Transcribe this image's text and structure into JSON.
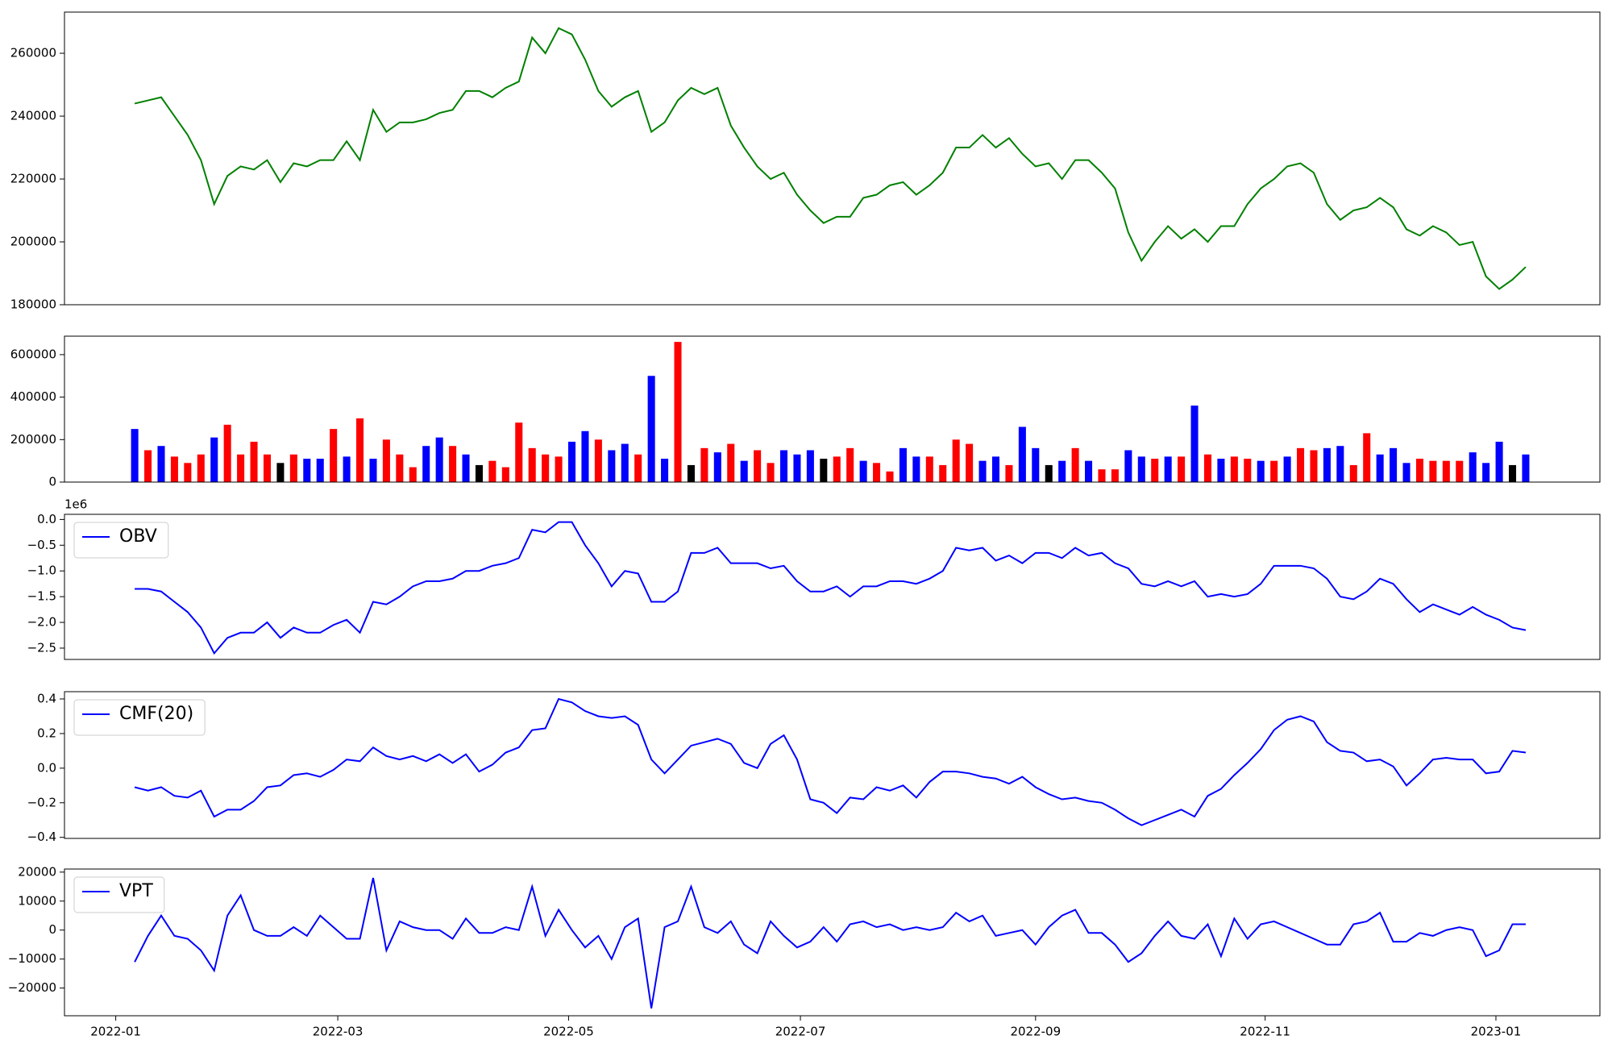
{
  "chart_data": [
    {
      "type": "line",
      "xlim": [
        -5.3,
        110.6
      ],
      "ylim": [
        180000,
        273100
      ],
      "yticks": [
        180000,
        200000,
        220000,
        240000,
        260000
      ],
      "series": [
        {
          "color": "green",
          "values": [
            244000,
            245000,
            246000,
            240000,
            234000,
            226000,
            212000,
            221000,
            224000,
            223000,
            226000,
            219000,
            225000,
            224000,
            226000,
            226000,
            232000,
            226000,
            242000,
            235000,
            238000,
            238000,
            239000,
            241000,
            242000,
            248000,
            248000,
            246000,
            249000,
            251000,
            265000,
            260000,
            268000,
            266000,
            258000,
            248000,
            243000,
            246000,
            248000,
            235000,
            238000,
            245000,
            249000,
            247000,
            249000,
            237000,
            230000,
            224000,
            220000,
            222000,
            215000,
            210000,
            206000,
            208000,
            208000,
            214000,
            215000,
            218000,
            219000,
            215000,
            218000,
            222000,
            230000,
            230000,
            234000,
            230000,
            233000,
            228000,
            224000,
            225000,
            220000,
            226000,
            226000,
            222000,
            217000,
            203000,
            194000,
            200000,
            205000,
            201000,
            204000,
            200000,
            205000,
            205000,
            212000,
            217000,
            220000,
            224000,
            225000,
            222000,
            212000,
            207000,
            210000,
            211000,
            214000,
            211000,
            204000,
            202000,
            205000,
            203000,
            199000,
            200000,
            189000,
            185000,
            188000,
            192000
          ]
        }
      ]
    },
    {
      "type": "bar",
      "xlim": [
        -5.3,
        110.6
      ],
      "ylim": [
        0,
        687000
      ],
      "yticks": [
        0,
        200000,
        400000,
        600000
      ],
      "values": [
        250000,
        150000,
        170000,
        120000,
        90000,
        130000,
        210000,
        270000,
        130000,
        190000,
        130000,
        90000,
        130000,
        110000,
        110000,
        250000,
        120000,
        300000,
        110000,
        200000,
        130000,
        70000,
        170000,
        210000,
        170000,
        130000,
        80000,
        100000,
        70000,
        280000,
        160000,
        130000,
        120000,
        190000,
        240000,
        200000,
        150000,
        180000,
        130000,
        500000,
        110000,
        660000,
        80000,
        160000,
        140000,
        180000,
        100000,
        150000,
        90000,
        150000,
        130000,
        150000,
        110000,
        120000,
        160000,
        100000,
        90000,
        50000,
        160000,
        120000,
        120000,
        80000,
        200000,
        180000,
        100000,
        120000,
        80000,
        260000,
        160000,
        80000,
        100000,
        160000,
        100000,
        60000,
        60000,
        150000,
        120000,
        110000,
        120000,
        120000,
        360000,
        130000,
        110000,
        120000,
        110000,
        100000,
        100000,
        120000,
        160000,
        150000,
        160000,
        170000,
        80000,
        230000,
        130000,
        160000,
        90000,
        110000,
        100000,
        100000,
        100000,
        140000,
        90000,
        190000,
        80000,
        130000
      ],
      "colors": [
        "blue",
        "red",
        "blue",
        "red",
        "red",
        "red",
        "blue",
        "red",
        "red",
        "red",
        "red",
        "black",
        "red",
        "blue",
        "blue",
        "red",
        "blue",
        "red",
        "blue",
        "red",
        "red",
        "red",
        "blue",
        "blue",
        "red",
        "blue",
        "black",
        "red",
        "red",
        "red",
        "red",
        "red",
        "red",
        "blue",
        "blue",
        "red",
        "blue",
        "blue",
        "red",
        "blue",
        "blue",
        "red",
        "black",
        "red",
        "blue",
        "red",
        "blue",
        "red",
        "red",
        "blue",
        "blue",
        "blue",
        "black",
        "red",
        "red",
        "blue",
        "red",
        "red",
        "blue",
        "blue",
        "red",
        "red",
        "red",
        "red",
        "blue",
        "blue",
        "red",
        "blue",
        "blue",
        "black",
        "blue",
        "red",
        "blue",
        "red",
        "red",
        "blue",
        "blue",
        "red",
        "blue",
        "red",
        "blue",
        "red",
        "blue",
        "red",
        "red",
        "blue",
        "red",
        "blue",
        "red",
        "red",
        "blue",
        "blue",
        "red",
        "red",
        "blue",
        "blue",
        "blue",
        "red",
        "red",
        "red",
        "red",
        "blue",
        "blue",
        "blue",
        "black",
        "blue"
      ]
    },
    {
      "type": "line",
      "xlim": [
        -5.3,
        110.6
      ],
      "ylim": [
        -2.72,
        0.1
      ],
      "offset_label": "1e6",
      "legend": "upper left",
      "yticks": [
        {
          "value": -2.5,
          "label": "−2.5"
        },
        {
          "value": -2.0,
          "label": "−2.0"
        },
        {
          "value": -1.5,
          "label": "−1.5"
        },
        {
          "value": -1.0,
          "label": "−1.0"
        },
        {
          "value": -0.5,
          "label": "−0.5"
        },
        {
          "value": 0,
          "label": "0.0"
        }
      ],
      "series": [
        {
          "name": "OBV",
          "color": "blue",
          "values": [
            -1.35,
            -1.35,
            -1.4,
            -1.6,
            -1.8,
            -2.1,
            -2.6,
            -2.3,
            -2.2,
            -2.2,
            -2.0,
            -2.3,
            -2.1,
            -2.2,
            -2.2,
            -2.05,
            -1.95,
            -2.2,
            -1.6,
            -1.65,
            -1.5,
            -1.3,
            -1.2,
            -1.2,
            -1.15,
            -1.0,
            -1.0,
            -0.9,
            -0.85,
            -0.75,
            -0.2,
            -0.25,
            -0.05,
            -0.05,
            -0.5,
            -0.85,
            -1.3,
            -1.0,
            -1.05,
            -1.6,
            -1.6,
            -1.4,
            -0.65,
            -0.65,
            -0.55,
            -0.85,
            -0.85,
            -0.85,
            -0.95,
            -0.9,
            -1.2,
            -1.4,
            -1.4,
            -1.3,
            -1.5,
            -1.3,
            -1.3,
            -1.2,
            -1.2,
            -1.25,
            -1.15,
            -1.0,
            -0.55,
            -0.6,
            -0.55,
            -0.8,
            -0.7,
            -0.85,
            -0.65,
            -0.65,
            -0.75,
            -0.55,
            -0.7,
            -0.65,
            -0.85,
            -0.95,
            -1.25,
            -1.3,
            -1.2,
            -1.3,
            -1.2,
            -1.5,
            -1.45,
            -1.5,
            -1.45,
            -1.25,
            -0.9,
            -0.9,
            -0.9,
            -0.95,
            -1.15,
            -1.5,
            -1.55,
            -1.4,
            -1.15,
            -1.25,
            -1.55,
            -1.8,
            -1.65,
            -1.75,
            -1.85,
            -1.7,
            -1.85,
            -1.95,
            -2.1,
            -2.15
          ]
        }
      ]
    },
    {
      "type": "line",
      "xlim": [
        -5.3,
        110.6
      ],
      "ylim": [
        -0.406,
        0.442
      ],
      "legend": "upper left",
      "yticks": [
        {
          "value": -0.4,
          "label": "−0.4"
        },
        {
          "value": -0.2,
          "label": "−0.2"
        },
        {
          "value": 0,
          "label": "0.0"
        },
        0.2,
        0.4
      ],
      "series": [
        {
          "name": "CMF(20)",
          "color": "blue",
          "values": [
            -0.11,
            -0.13,
            -0.11,
            -0.16,
            -0.17,
            -0.13,
            -0.28,
            -0.24,
            -0.24,
            -0.19,
            -0.11,
            -0.1,
            -0.04,
            -0.03,
            -0.05,
            -0.01,
            0.05,
            0.04,
            0.12,
            0.07,
            0.05,
            0.07,
            0.04,
            0.08,
            0.03,
            0.08,
            -0.02,
            0.02,
            0.09,
            0.12,
            0.22,
            0.23,
            0.4,
            0.38,
            0.33,
            0.3,
            0.29,
            0.3,
            0.25,
            0.05,
            -0.03,
            0.05,
            0.13,
            0.15,
            0.17,
            0.14,
            0.03,
            0.0,
            0.14,
            0.19,
            0.05,
            -0.18,
            -0.2,
            -0.26,
            -0.17,
            -0.18,
            -0.11,
            -0.13,
            -0.1,
            -0.17,
            -0.08,
            -0.02,
            -0.02,
            -0.03,
            -0.05,
            -0.06,
            -0.09,
            -0.05,
            -0.11,
            -0.15,
            -0.18,
            -0.17,
            -0.19,
            -0.2,
            -0.24,
            -0.29,
            -0.33,
            -0.3,
            -0.27,
            -0.24,
            -0.28,
            -0.16,
            -0.12,
            -0.04,
            0.03,
            0.11,
            0.22,
            0.28,
            0.3,
            0.27,
            0.15,
            0.1,
            0.09,
            0.04,
            0.05,
            0.01,
            -0.1,
            -0.03,
            0.05,
            0.06,
            0.05,
            0.05,
            -0.03,
            -0.02,
            0.1,
            0.09
          ]
        }
      ]
    },
    {
      "type": "line",
      "xlim": [
        -5.3,
        110.6
      ],
      "ylim": [
        -29560,
        21060
      ],
      "legend": "upper left",
      "yticks": [
        {
          "value": -20000,
          "label": "−20000"
        },
        {
          "value": -10000,
          "label": "−10000"
        },
        0,
        10000,
        20000
      ],
      "xticks": [
        {
          "value": -1.43,
          "label": "2022-01"
        },
        {
          "value": 15.33,
          "label": "2022-03"
        },
        {
          "value": 32.75,
          "label": "2022-05"
        },
        {
          "value": 50.25,
          "label": "2022-07"
        },
        {
          "value": 68,
          "label": "2022-09"
        },
        {
          "value": 85.33,
          "label": "2022-11"
        },
        {
          "value": 102.75,
          "label": "2023-01"
        }
      ],
      "series": [
        {
          "name": "VPT",
          "color": "blue",
          "values": [
            -11000,
            -2000,
            5000,
            -2000,
            -3000,
            -7000,
            -14000,
            5000,
            12000,
            0,
            -2000,
            -2000,
            1000,
            -2000,
            5000,
            1000,
            -3000,
            -3000,
            18000,
            -7000,
            3000,
            1000,
            0,
            0,
            -3000,
            4000,
            -1000,
            -1000,
            1000,
            0,
            15000,
            -2000,
            7000,
            0,
            -6000,
            -2000,
            -10000,
            1000,
            4000,
            -27000,
            1000,
            3000,
            15000,
            1000,
            -1000,
            3000,
            -5000,
            -8000,
            3000,
            -2000,
            -6000,
            -4000,
            1000,
            -4000,
            2000,
            3000,
            1000,
            2000,
            0,
            1000,
            0,
            1000,
            6000,
            3000,
            5000,
            -2000,
            -1000,
            0,
            -5000,
            1000,
            5000,
            7000,
            -1000,
            -1000,
            -5000,
            -11000,
            -8000,
            -2000,
            3000,
            -2000,
            -3000,
            2000,
            -9000,
            4000,
            -3000,
            2000,
            3000,
            1000,
            -1000,
            -3000,
            -5000,
            -5000,
            2000,
            3000,
            6000,
            -4000,
            -4000,
            -1000,
            -2000,
            0,
            1000,
            0,
            -9000,
            -7000,
            2000,
            2000
          ]
        }
      ]
    }
  ]
}
